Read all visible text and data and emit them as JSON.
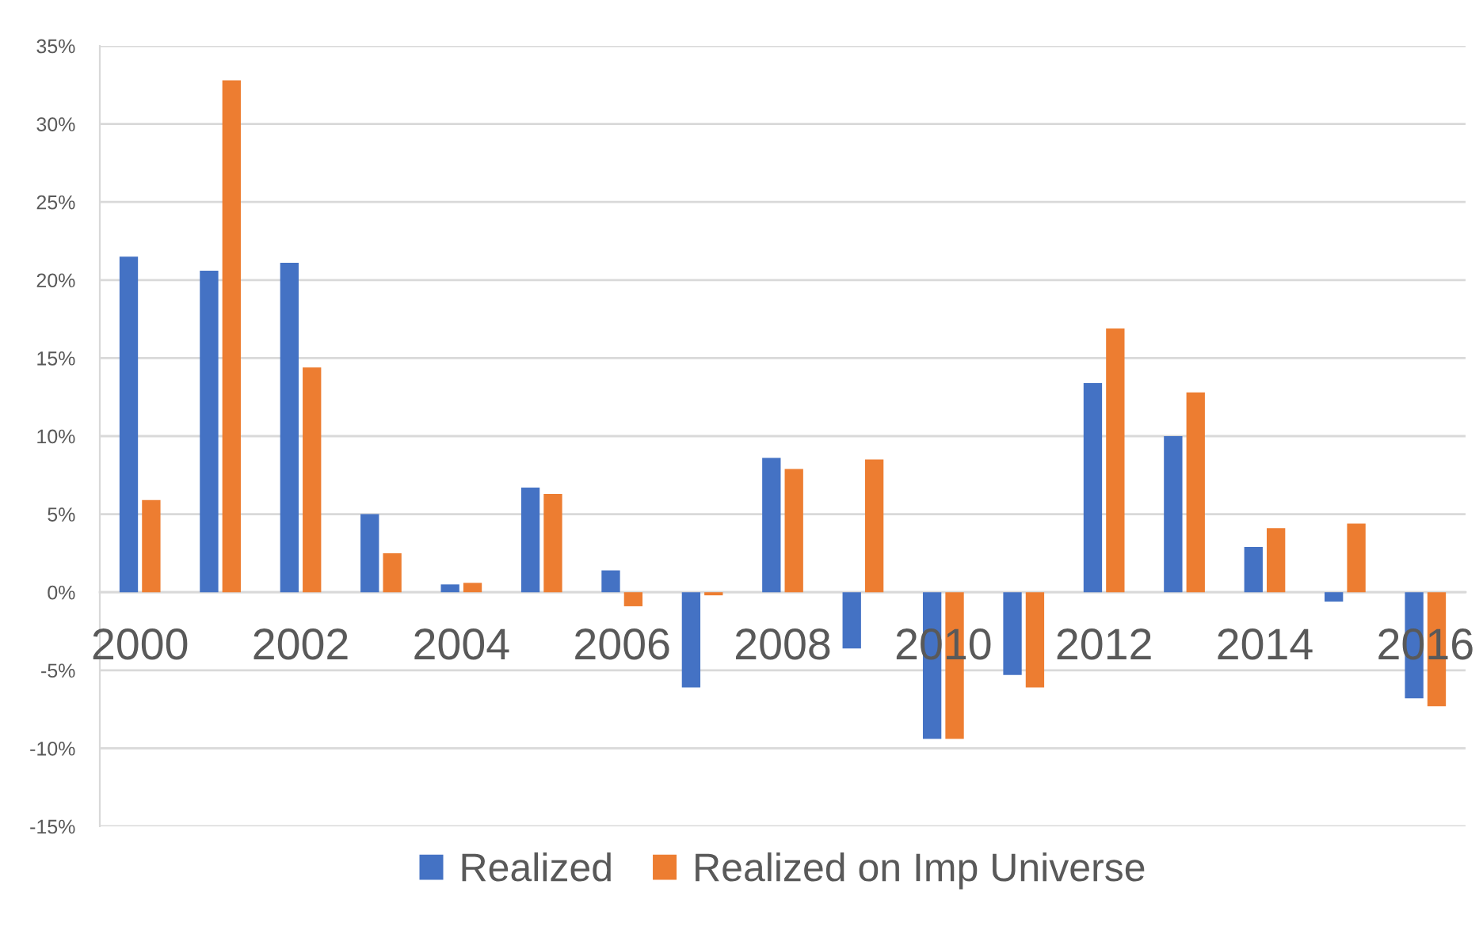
{
  "chart_data": {
    "type": "bar",
    "categories": [
      "2000",
      null,
      "2002",
      null,
      "2004",
      null,
      "2006",
      null,
      "2008",
      null,
      "2010",
      null,
      "2012",
      null,
      "2014",
      null,
      "2016"
    ],
    "series": [
      {
        "name": "Realized",
        "color": "#4472c4",
        "values": [
          21.5,
          20.6,
          21.1,
          5.0,
          0.5,
          6.7,
          1.4,
          -6.1,
          8.6,
          -3.6,
          -9.4,
          -5.3,
          13.4,
          10.0,
          2.9,
          -0.6,
          -6.8
        ]
      },
      {
        "name": "Realized on Imp Universe",
        "color": "#ed7d31",
        "values": [
          5.9,
          32.8,
          14.4,
          2.5,
          0.6,
          6.3,
          -0.9,
          -0.2,
          7.9,
          8.5,
          -9.4,
          -6.1,
          16.9,
          12.8,
          4.1,
          4.4,
          -7.3
        ]
      }
    ],
    "ylim": [
      -15,
      35
    ],
    "yticks": [
      {
        "value": -15,
        "label": "-15%"
      },
      {
        "value": -10,
        "label": "-10%"
      },
      {
        "value": -5,
        "label": "-5%"
      },
      {
        "value": 0,
        "label": "0%"
      },
      {
        "value": 5,
        "label": "5%"
      },
      {
        "value": 10,
        "label": "10%"
      },
      {
        "value": 15,
        "label": "15%"
      },
      {
        "value": 20,
        "label": "20%"
      },
      {
        "value": 25,
        "label": "25%"
      },
      {
        "value": 30,
        "label": "30%"
      },
      {
        "value": 35,
        "label": "35%"
      }
    ],
    "grid": "y",
    "legend": "bottom"
  }
}
